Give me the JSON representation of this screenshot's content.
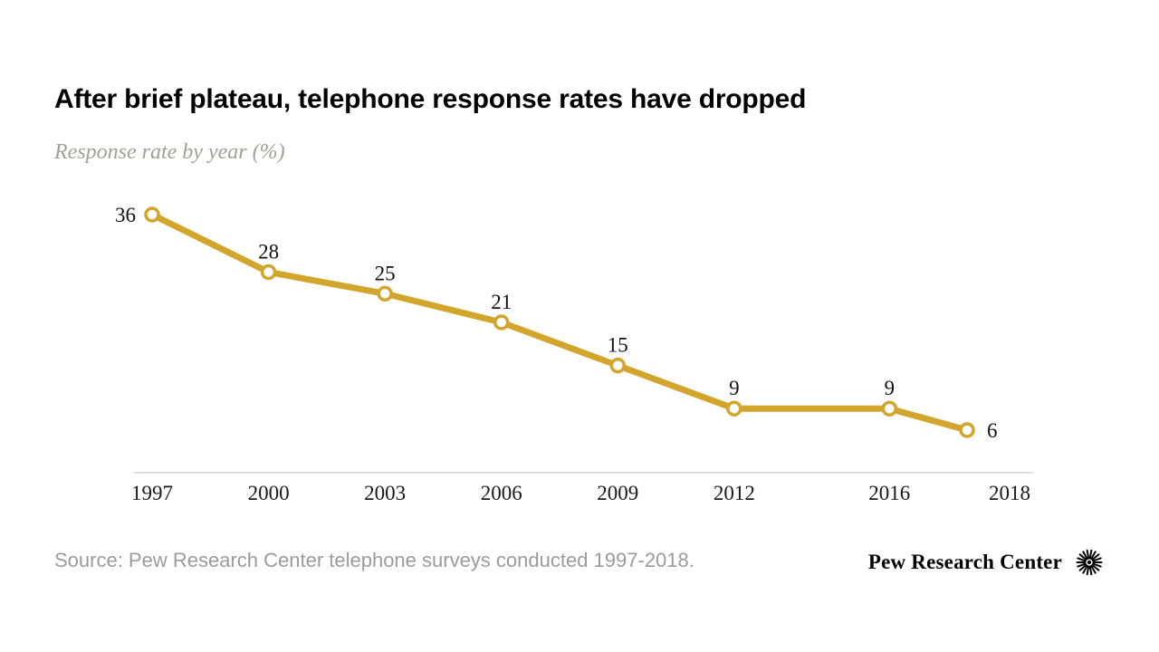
{
  "header": {
    "title": "After brief plateau, telephone response rates have dropped",
    "subtitle": "Response rate by year (%)"
  },
  "chart_data": {
    "type": "line",
    "title": "After brief plateau, telephone response rates have dropped",
    "subtitle": "Response rate by year (%)",
    "x": [
      1997,
      2000,
      2003,
      2006,
      2009,
      2012,
      2016,
      2018
    ],
    "values": [
      36,
      28,
      25,
      21,
      15,
      9,
      9,
      6
    ],
    "tick_labels": [
      "1997",
      "2000",
      "2003",
      "2006",
      "2009",
      "2012",
      "2016",
      "2018"
    ],
    "value_label_positions": [
      "left",
      "above",
      "above",
      "above",
      "above",
      "above",
      "above",
      "right"
    ],
    "tick_offsets": [
      0,
      0,
      0,
      0,
      0,
      0,
      0,
      47
    ],
    "xlim": [
      1997,
      2018
    ],
    "ylim": [
      0,
      40
    ],
    "grid": false,
    "legend": "none",
    "line_color": "#d4a52c",
    "marker_fill": "#ffffff",
    "axis_color": "#cccccc",
    "label_color": "#111111"
  },
  "footer": {
    "source": "Source: Pew Research Center telephone surveys conducted 1997-2018.",
    "logo_text": "Pew Research Center"
  }
}
